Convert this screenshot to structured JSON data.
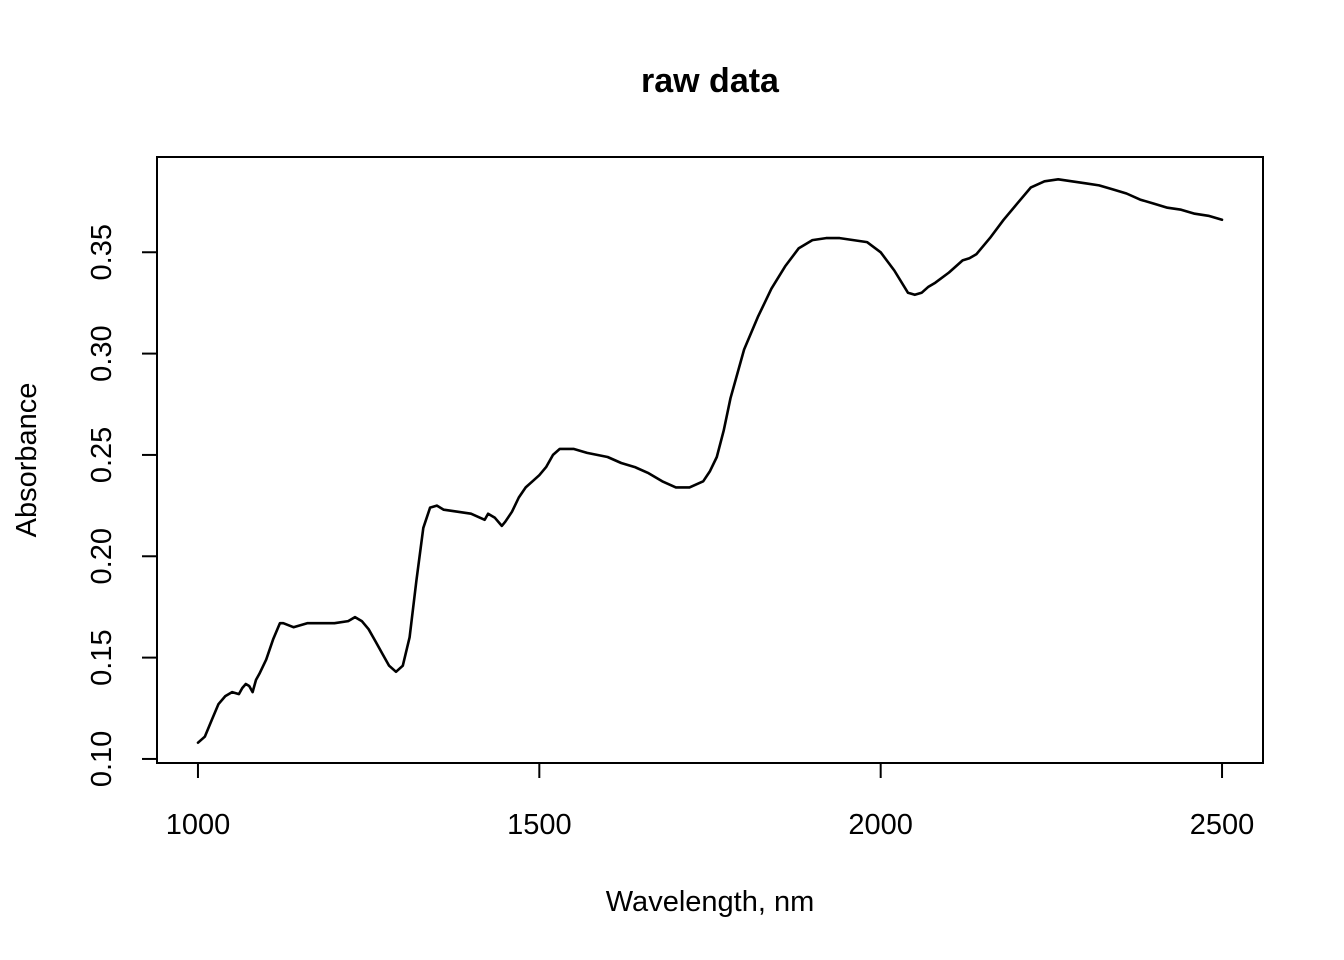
{
  "chart_data": {
    "type": "line",
    "title": "raw data",
    "xlabel": "Wavelength, nm",
    "ylabel": "Absorbance",
    "xlim": [
      940,
      2560
    ],
    "ylim": [
      0.098,
      0.397
    ],
    "xticks": [
      1000,
      1500,
      2000,
      2500
    ],
    "xtick_labels": [
      "1000",
      "1500",
      "2000",
      "2500"
    ],
    "yticks": [
      0.1,
      0.15,
      0.2,
      0.25,
      0.3,
      0.35
    ],
    "ytick_labels": [
      "0.10",
      "0.15",
      "0.20",
      "0.25",
      "0.30",
      "0.35"
    ],
    "grid": false,
    "line_color": "#000000",
    "series": [
      {
        "x": [
          1000,
          1010,
          1020,
          1030,
          1040,
          1050,
          1060,
          1065,
          1070,
          1075,
          1080,
          1085,
          1090,
          1100,
          1110,
          1120,
          1125,
          1140,
          1160,
          1180,
          1200,
          1220,
          1230,
          1240,
          1250,
          1260,
          1270,
          1280,
          1290,
          1300,
          1310,
          1320,
          1330,
          1340,
          1350,
          1360,
          1380,
          1400,
          1420,
          1425,
          1435,
          1445,
          1450,
          1460,
          1470,
          1480,
          1490,
          1500,
          1510,
          1520,
          1530,
          1550,
          1570,
          1600,
          1620,
          1640,
          1660,
          1680,
          1700,
          1720,
          1740,
          1750,
          1760,
          1770,
          1780,
          1790,
          1800,
          1820,
          1840,
          1860,
          1880,
          1900,
          1920,
          1940,
          1960,
          1980,
          2000,
          2020,
          2040,
          2050,
          2060,
          2070,
          2080,
          2100,
          2120,
          2130,
          2140,
          2160,
          2180,
          2200,
          2220,
          2240,
          2260,
          2280,
          2300,
          2320,
          2340,
          2360,
          2380,
          2400,
          2420,
          2440,
          2460,
          2480,
          2500
        ],
        "y": [
          0.108,
          0.111,
          0.119,
          0.127,
          0.131,
          0.133,
          0.132,
          0.135,
          0.137,
          0.136,
          0.133,
          0.139,
          0.142,
          0.149,
          0.159,
          0.167,
          0.167,
          0.165,
          0.167,
          0.167,
          0.167,
          0.168,
          0.17,
          0.168,
          0.164,
          0.158,
          0.152,
          0.146,
          0.143,
          0.146,
          0.16,
          0.188,
          0.214,
          0.224,
          0.225,
          0.223,
          0.222,
          0.221,
          0.218,
          0.221,
          0.219,
          0.215,
          0.217,
          0.222,
          0.229,
          0.234,
          0.237,
          0.24,
          0.244,
          0.25,
          0.253,
          0.253,
          0.251,
          0.249,
          0.246,
          0.244,
          0.241,
          0.237,
          0.234,
          0.234,
          0.237,
          0.242,
          0.249,
          0.262,
          0.278,
          0.29,
          0.302,
          0.318,
          0.332,
          0.343,
          0.352,
          0.356,
          0.357,
          0.357,
          0.356,
          0.355,
          0.35,
          0.341,
          0.33,
          0.329,
          0.33,
          0.333,
          0.335,
          0.34,
          0.346,
          0.347,
          0.349,
          0.357,
          0.366,
          0.374,
          0.382,
          0.385,
          0.386,
          0.385,
          0.384,
          0.383,
          0.381,
          0.379,
          0.376,
          0.374,
          0.372,
          0.371,
          0.369,
          0.368,
          0.366
        ]
      }
    ]
  }
}
